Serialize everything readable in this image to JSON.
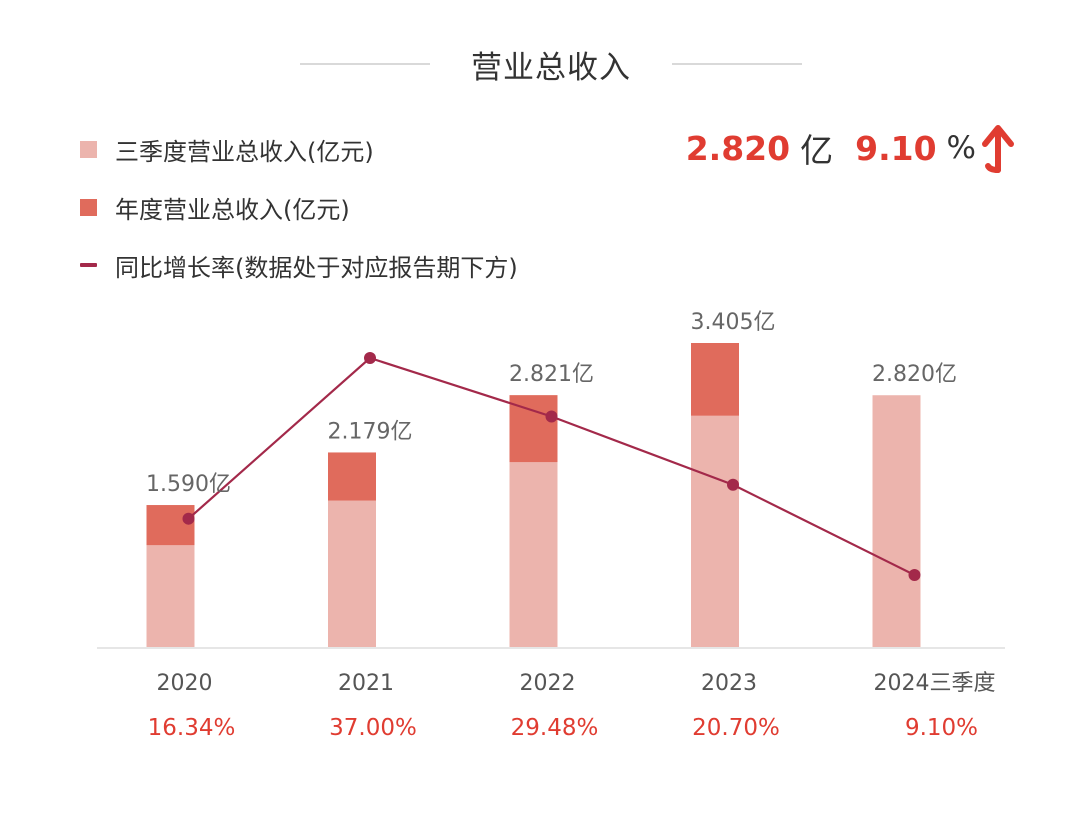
{
  "title": "营业总收入",
  "legend": [
    {
      "label": "三季度营业总收入(亿元)",
      "color": "#ecb4ad",
      "kind": "box"
    },
    {
      "label": "年度营业总收入(亿元)",
      "color": "#e06b5c",
      "kind": "box"
    },
    {
      "label": "同比增长率(数据处于对应报告期下方)",
      "color": "#a3294a",
      "kind": "line"
    }
  ],
  "summary": {
    "value": "2.820",
    "value_unit": "亿",
    "growth": "9.10",
    "growth_unit": "%",
    "trend_icon": "arrow-up-icon",
    "accent_color": "#e03c31"
  },
  "chart_data": {
    "type": "bar",
    "title": "营业总收入",
    "xlabel": "",
    "ylabel": "",
    "categories": [
      "2020",
      "2021",
      "2022",
      "2023",
      "2024三季度"
    ],
    "series": [
      {
        "name": "三季度营业总收入(亿元)",
        "type": "bar",
        "stack": "revenue",
        "color": "#ecb4ad",
        "values": [
          1.14,
          1.64,
          2.07,
          2.59,
          2.82
        ]
      },
      {
        "name": "年度营业总收入(亿元)",
        "type": "bar",
        "stack": "revenue",
        "color": "#e06b5c",
        "totals": [
          1.59,
          2.179,
          2.821,
          3.405,
          null
        ]
      },
      {
        "name": "同比增长率(数据处于对应报告期下方)",
        "type": "line",
        "color": "#a3294a",
        "values": [
          16.34,
          37.0,
          29.48,
          20.7,
          9.1
        ]
      }
    ],
    "bar_labels": [
      "1.590亿",
      "2.179亿",
      "2.821亿",
      "3.405亿",
      "2.820亿"
    ],
    "growth_labels": [
      "16.34%",
      "37.00%",
      "29.48%",
      "20.70%",
      "9.10%"
    ],
    "ylim": [
      0,
      3.405
    ],
    "line_ylim": [
      9.1,
      37.0
    ],
    "grid": false,
    "legend_position": "top-left"
  }
}
